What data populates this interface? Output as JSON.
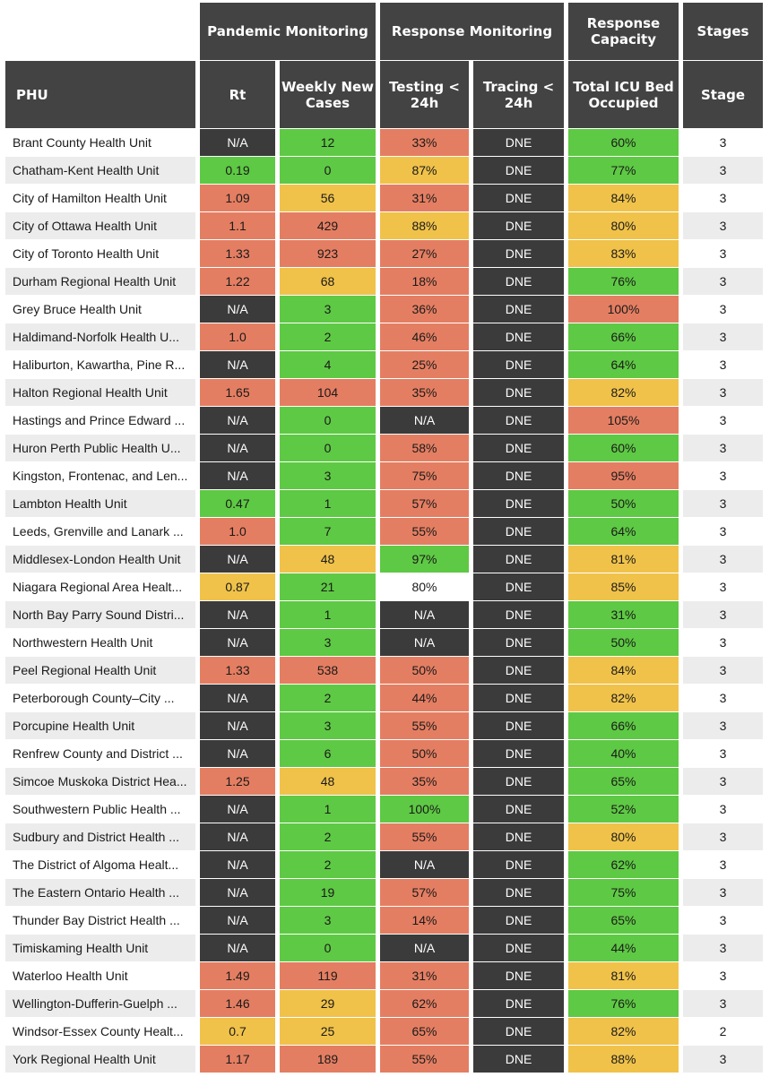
{
  "header": {
    "groups": {
      "pandemic": "Pandemic Monitoring",
      "response_monitoring": "Response Monitoring",
      "response_capacity": "Response Capacity",
      "stages": "Stages"
    },
    "columns": {
      "phu": "PHU",
      "rt": "Rt",
      "weekly_cases": "Weekly New Cases",
      "testing": "Testing < 24h",
      "tracing": "Tracing < 24h",
      "icu": "Total ICU Bed Occupied",
      "stage": "Stage"
    }
  },
  "colors": {
    "green": "#5ec944",
    "red": "#e47e62",
    "yellow": "#f0c24a",
    "dark": "#3b3b3b",
    "white": "#ffffff",
    "header": "#434343"
  },
  "chart_data": {
    "type": "table",
    "title": "",
    "columns": [
      "PHU",
      "Rt",
      "Weekly New Cases",
      "Testing < 24h",
      "Tracing < 24h",
      "Total ICU Bed Occupied",
      "Stage"
    ],
    "rows": [
      {
        "phu": "Brant County Health Unit",
        "rt": "N/A",
        "rt_c": "dark",
        "cases": "12",
        "cases_c": "green",
        "testing": "33%",
        "testing_c": "red",
        "tracing": "DNE",
        "tracing_c": "dark",
        "icu": "60%",
        "icu_c": "green",
        "stage": "3"
      },
      {
        "phu": "Chatham-Kent Health Unit",
        "rt": "0.19",
        "rt_c": "green",
        "cases": "0",
        "cases_c": "green",
        "testing": "87%",
        "testing_c": "yellow",
        "tracing": "DNE",
        "tracing_c": "dark",
        "icu": "77%",
        "icu_c": "green",
        "stage": "3"
      },
      {
        "phu": "City of Hamilton Health Unit",
        "rt": "1.09",
        "rt_c": "red",
        "cases": "56",
        "cases_c": "yellow",
        "testing": "31%",
        "testing_c": "red",
        "tracing": "DNE",
        "tracing_c": "dark",
        "icu": "84%",
        "icu_c": "yellow",
        "stage": "3"
      },
      {
        "phu": "City of Ottawa Health Unit",
        "rt": "1.1",
        "rt_c": "red",
        "cases": "429",
        "cases_c": "red",
        "testing": "88%",
        "testing_c": "yellow",
        "tracing": "DNE",
        "tracing_c": "dark",
        "icu": "80%",
        "icu_c": "yellow",
        "stage": "3"
      },
      {
        "phu": "City of Toronto Health Unit",
        "rt": "1.33",
        "rt_c": "red",
        "cases": "923",
        "cases_c": "red",
        "testing": "27%",
        "testing_c": "red",
        "tracing": "DNE",
        "tracing_c": "dark",
        "icu": "83%",
        "icu_c": "yellow",
        "stage": "3"
      },
      {
        "phu": "Durham Regional Health Unit",
        "rt": "1.22",
        "rt_c": "red",
        "cases": "68",
        "cases_c": "yellow",
        "testing": "18%",
        "testing_c": "red",
        "tracing": "DNE",
        "tracing_c": "dark",
        "icu": "76%",
        "icu_c": "green",
        "stage": "3"
      },
      {
        "phu": "Grey Bruce Health Unit",
        "rt": "N/A",
        "rt_c": "dark",
        "cases": "3",
        "cases_c": "green",
        "testing": "36%",
        "testing_c": "red",
        "tracing": "DNE",
        "tracing_c": "dark",
        "icu": "100%",
        "icu_c": "red",
        "stage": "3"
      },
      {
        "phu": "Haldimand-Norfolk Health U...",
        "rt": "1.0",
        "rt_c": "red",
        "cases": "2",
        "cases_c": "green",
        "testing": "46%",
        "testing_c": "red",
        "tracing": "DNE",
        "tracing_c": "dark",
        "icu": "66%",
        "icu_c": "green",
        "stage": "3"
      },
      {
        "phu": "Haliburton, Kawartha, Pine R...",
        "rt": "N/A",
        "rt_c": "dark",
        "cases": "4",
        "cases_c": "green",
        "testing": "25%",
        "testing_c": "red",
        "tracing": "DNE",
        "tracing_c": "dark",
        "icu": "64%",
        "icu_c": "green",
        "stage": "3"
      },
      {
        "phu": "Halton Regional Health Unit",
        "rt": "1.65",
        "rt_c": "red",
        "cases": "104",
        "cases_c": "red",
        "testing": "35%",
        "testing_c": "red",
        "tracing": "DNE",
        "tracing_c": "dark",
        "icu": "82%",
        "icu_c": "yellow",
        "stage": "3"
      },
      {
        "phu": "Hastings and Prince Edward ...",
        "rt": "N/A",
        "rt_c": "dark",
        "cases": "0",
        "cases_c": "green",
        "testing": "N/A",
        "testing_c": "dark",
        "tracing": "DNE",
        "tracing_c": "dark",
        "icu": "105%",
        "icu_c": "red",
        "stage": "3"
      },
      {
        "phu": "Huron Perth Public Health U...",
        "rt": "N/A",
        "rt_c": "dark",
        "cases": "0",
        "cases_c": "green",
        "testing": "58%",
        "testing_c": "red",
        "tracing": "DNE",
        "tracing_c": "dark",
        "icu": "60%",
        "icu_c": "green",
        "stage": "3"
      },
      {
        "phu": "Kingston, Frontenac, and Len...",
        "rt": "N/A",
        "rt_c": "dark",
        "cases": "3",
        "cases_c": "green",
        "testing": "75%",
        "testing_c": "red",
        "tracing": "DNE",
        "tracing_c": "dark",
        "icu": "95%",
        "icu_c": "red",
        "stage": "3"
      },
      {
        "phu": "Lambton Health Unit",
        "rt": "0.47",
        "rt_c": "green",
        "cases": "1",
        "cases_c": "green",
        "testing": "57%",
        "testing_c": "red",
        "tracing": "DNE",
        "tracing_c": "dark",
        "icu": "50%",
        "icu_c": "green",
        "stage": "3"
      },
      {
        "phu": "Leeds, Grenville and Lanark ...",
        "rt": "1.0",
        "rt_c": "red",
        "cases": "7",
        "cases_c": "green",
        "testing": "55%",
        "testing_c": "red",
        "tracing": "DNE",
        "tracing_c": "dark",
        "icu": "64%",
        "icu_c": "green",
        "stage": "3"
      },
      {
        "phu": "Middlesex-London Health Unit",
        "rt": "N/A",
        "rt_c": "dark",
        "cases": "48",
        "cases_c": "yellow",
        "testing": "97%",
        "testing_c": "green",
        "tracing": "DNE",
        "tracing_c": "dark",
        "icu": "81%",
        "icu_c": "yellow",
        "stage": "3"
      },
      {
        "phu": "Niagara Regional Area Healt...",
        "rt": "0.87",
        "rt_c": "yellow",
        "cases": "21",
        "cases_c": "green",
        "testing": "80%",
        "testing_c": "white",
        "tracing": "DNE",
        "tracing_c": "dark",
        "icu": "85%",
        "icu_c": "yellow",
        "stage": "3"
      },
      {
        "phu": "North Bay Parry Sound Distri...",
        "rt": "N/A",
        "rt_c": "dark",
        "cases": "1",
        "cases_c": "green",
        "testing": "N/A",
        "testing_c": "dark",
        "tracing": "DNE",
        "tracing_c": "dark",
        "icu": "31%",
        "icu_c": "green",
        "stage": "3"
      },
      {
        "phu": "Northwestern Health Unit",
        "rt": "N/A",
        "rt_c": "dark",
        "cases": "3",
        "cases_c": "green",
        "testing": "N/A",
        "testing_c": "dark",
        "tracing": "DNE",
        "tracing_c": "dark",
        "icu": "50%",
        "icu_c": "green",
        "stage": "3"
      },
      {
        "phu": "Peel Regional Health Unit",
        "rt": "1.33",
        "rt_c": "red",
        "cases": "538",
        "cases_c": "red",
        "testing": "50%",
        "testing_c": "red",
        "tracing": "DNE",
        "tracing_c": "dark",
        "icu": "84%",
        "icu_c": "yellow",
        "stage": "3"
      },
      {
        "phu": "Peterborough County–City ...",
        "rt": "N/A",
        "rt_c": "dark",
        "cases": "2",
        "cases_c": "green",
        "testing": "44%",
        "testing_c": "red",
        "tracing": "DNE",
        "tracing_c": "dark",
        "icu": "82%",
        "icu_c": "yellow",
        "stage": "3"
      },
      {
        "phu": "Porcupine Health Unit",
        "rt": "N/A",
        "rt_c": "dark",
        "cases": "3",
        "cases_c": "green",
        "testing": "55%",
        "testing_c": "red",
        "tracing": "DNE",
        "tracing_c": "dark",
        "icu": "66%",
        "icu_c": "green",
        "stage": "3"
      },
      {
        "phu": "Renfrew County and District ...",
        "rt": "N/A",
        "rt_c": "dark",
        "cases": "6",
        "cases_c": "green",
        "testing": "50%",
        "testing_c": "red",
        "tracing": "DNE",
        "tracing_c": "dark",
        "icu": "40%",
        "icu_c": "green",
        "stage": "3"
      },
      {
        "phu": "Simcoe Muskoka District Hea...",
        "rt": "1.25",
        "rt_c": "red",
        "cases": "48",
        "cases_c": "yellow",
        "testing": "35%",
        "testing_c": "red",
        "tracing": "DNE",
        "tracing_c": "dark",
        "icu": "65%",
        "icu_c": "green",
        "stage": "3"
      },
      {
        "phu": "Southwestern Public Health ...",
        "rt": "N/A",
        "rt_c": "dark",
        "cases": "1",
        "cases_c": "green",
        "testing": "100%",
        "testing_c": "green",
        "tracing": "DNE",
        "tracing_c": "dark",
        "icu": "52%",
        "icu_c": "green",
        "stage": "3"
      },
      {
        "phu": "Sudbury and District Health ...",
        "rt": "N/A",
        "rt_c": "dark",
        "cases": "2",
        "cases_c": "green",
        "testing": "55%",
        "testing_c": "red",
        "tracing": "DNE",
        "tracing_c": "dark",
        "icu": "80%",
        "icu_c": "yellow",
        "stage": "3"
      },
      {
        "phu": "The District of Algoma Healt...",
        "rt": "N/A",
        "rt_c": "dark",
        "cases": "2",
        "cases_c": "green",
        "testing": "N/A",
        "testing_c": "dark",
        "tracing": "DNE",
        "tracing_c": "dark",
        "icu": "62%",
        "icu_c": "green",
        "stage": "3"
      },
      {
        "phu": "The Eastern Ontario Health ...",
        "rt": "N/A",
        "rt_c": "dark",
        "cases": "19",
        "cases_c": "green",
        "testing": "57%",
        "testing_c": "red",
        "tracing": "DNE",
        "tracing_c": "dark",
        "icu": "75%",
        "icu_c": "green",
        "stage": "3"
      },
      {
        "phu": "Thunder Bay District Health ...",
        "rt": "N/A",
        "rt_c": "dark",
        "cases": "3",
        "cases_c": "green",
        "testing": "14%",
        "testing_c": "red",
        "tracing": "DNE",
        "tracing_c": "dark",
        "icu": "65%",
        "icu_c": "green",
        "stage": "3"
      },
      {
        "phu": "Timiskaming Health Unit",
        "rt": "N/A",
        "rt_c": "dark",
        "cases": "0",
        "cases_c": "green",
        "testing": "N/A",
        "testing_c": "dark",
        "tracing": "DNE",
        "tracing_c": "dark",
        "icu": "44%",
        "icu_c": "green",
        "stage": "3"
      },
      {
        "phu": "Waterloo Health Unit",
        "rt": "1.49",
        "rt_c": "red",
        "cases": "119",
        "cases_c": "red",
        "testing": "31%",
        "testing_c": "red",
        "tracing": "DNE",
        "tracing_c": "dark",
        "icu": "81%",
        "icu_c": "yellow",
        "stage": "3"
      },
      {
        "phu": "Wellington-Dufferin-Guelph ...",
        "rt": "1.46",
        "rt_c": "red",
        "cases": "29",
        "cases_c": "yellow",
        "testing": "62%",
        "testing_c": "red",
        "tracing": "DNE",
        "tracing_c": "dark",
        "icu": "76%",
        "icu_c": "green",
        "stage": "3"
      },
      {
        "phu": "Windsor-Essex County Healt...",
        "rt": "0.7",
        "rt_c": "yellow",
        "cases": "25",
        "cases_c": "yellow",
        "testing": "65%",
        "testing_c": "red",
        "tracing": "DNE",
        "tracing_c": "dark",
        "icu": "82%",
        "icu_c": "yellow",
        "stage": "2"
      },
      {
        "phu": "York Regional Health Unit",
        "rt": "1.17",
        "rt_c": "red",
        "cases": "189",
        "cases_c": "red",
        "testing": "55%",
        "testing_c": "red",
        "tracing": "DNE",
        "tracing_c": "dark",
        "icu": "88%",
        "icu_c": "yellow",
        "stage": "3"
      }
    ]
  }
}
